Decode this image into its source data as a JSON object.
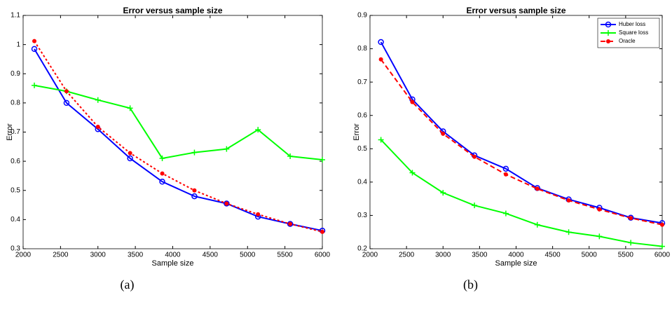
{
  "chart_data": [
    {
      "type": "line",
      "title": "Error versus sample size",
      "x_label": "Sample size",
      "y_label": "Error",
      "caption": "(a)",
      "x": [
        2150,
        2580,
        3000,
        3430,
        3860,
        4290,
        4720,
        5140,
        5570,
        6000
      ],
      "xlim": [
        2000,
        6000
      ],
      "xticks": [
        2000,
        2500,
        3000,
        3500,
        4000,
        4500,
        5000,
        5500,
        6000
      ],
      "ylim": [
        0.3,
        1.1
      ],
      "yticks": [
        0.3,
        0.4,
        0.5,
        0.6,
        0.7,
        0.8,
        0.9,
        1,
        1.1
      ],
      "series": [
        {
          "color": "#0000ff",
          "marker": "circle",
          "linestyle": "solid",
          "values": [
            0.985,
            0.8,
            0.71,
            0.61,
            0.53,
            0.48,
            0.455,
            0.41,
            0.385,
            0.362
          ]
        },
        {
          "color": "#00ff00",
          "marker": "plus",
          "linestyle": "solid",
          "values": [
            0.86,
            0.84,
            0.81,
            0.782,
            0.61,
            0.63,
            0.642,
            0.708,
            0.617,
            0.605
          ]
        },
        {
          "color": "#ff0000",
          "marker": "dot",
          "linestyle": "dotted",
          "values": [
            1.012,
            0.84,
            0.718,
            0.628,
            0.558,
            0.5,
            0.455,
            0.418,
            0.385,
            0.358
          ]
        }
      ]
    },
    {
      "type": "line",
      "title": "Error versus sample size",
      "x_label": "Sample size",
      "y_label": "Error",
      "caption": "(b)",
      "x": [
        2150,
        2580,
        3000,
        3430,
        3860,
        4290,
        4720,
        5140,
        5570,
        6000
      ],
      "xlim": [
        2000,
        6000
      ],
      "xticks": [
        2000,
        2500,
        3000,
        3500,
        4000,
        4500,
        5000,
        5500,
        6000
      ],
      "ylim": [
        0.2,
        0.9
      ],
      "yticks": [
        0.2,
        0.3,
        0.4,
        0.5,
        0.6,
        0.7,
        0.8,
        0.9
      ],
      "legend": "upper right",
      "series": [
        {
          "name": "Huber loss",
          "color": "#0000ff",
          "marker": "circle",
          "linestyle": "solid",
          "values": [
            0.82,
            0.648,
            0.552,
            0.48,
            0.44,
            0.382,
            0.348,
            0.323,
            0.293,
            0.277
          ]
        },
        {
          "name": "Square loss",
          "color": "#00ff00",
          "marker": "plus",
          "linestyle": "solid",
          "values": [
            0.527,
            0.428,
            0.368,
            0.33,
            0.306,
            0.272,
            0.25,
            0.237,
            0.218,
            0.207
          ]
        },
        {
          "name": "Oracle",
          "color": "#ff0000",
          "marker": "dot",
          "linestyle": "dashed",
          "values": [
            0.768,
            0.64,
            0.545,
            0.476,
            0.423,
            0.38,
            0.345,
            0.318,
            0.292,
            0.272
          ]
        }
      ]
    }
  ]
}
